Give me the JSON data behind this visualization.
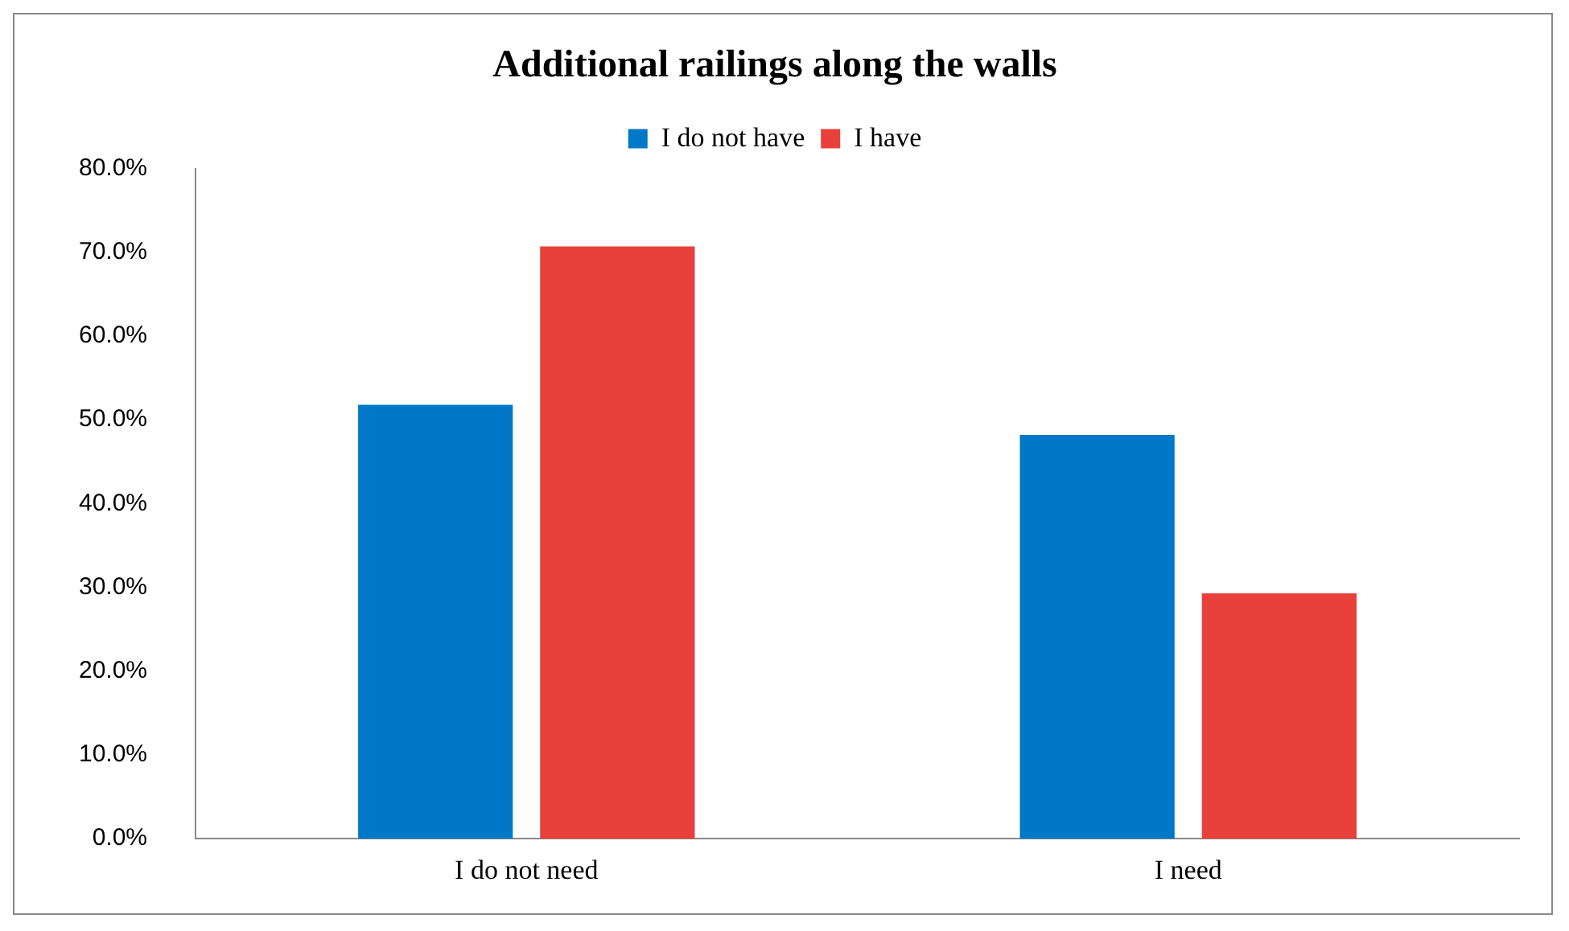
{
  "chart_data": {
    "type": "bar",
    "title": "Additional railings along the walls",
    "categories": [
      "I do not need",
      "I need"
    ],
    "series": [
      {
        "name": "I do not have",
        "color": "#0078c8",
        "values": [
          51.8,
          48.2
        ]
      },
      {
        "name": "I have",
        "color": "#e8403a",
        "values": [
          70.7,
          29.3
        ]
      }
    ],
    "ylim": [
      0,
      80
    ],
    "yticks": [
      {
        "value": 0,
        "label": "0.0%"
      },
      {
        "value": 10,
        "label": "10.0%"
      },
      {
        "value": 20,
        "label": "20.0%"
      },
      {
        "value": 30,
        "label": "30.0%"
      },
      {
        "value": 40,
        "label": "40.0%"
      },
      {
        "value": 50,
        "label": "50.0%"
      },
      {
        "value": 60,
        "label": "60.0%"
      },
      {
        "value": 70,
        "label": "70.0%"
      },
      {
        "value": 80,
        "label": "80.0%"
      }
    ],
    "grid": false,
    "legend": "top"
  }
}
